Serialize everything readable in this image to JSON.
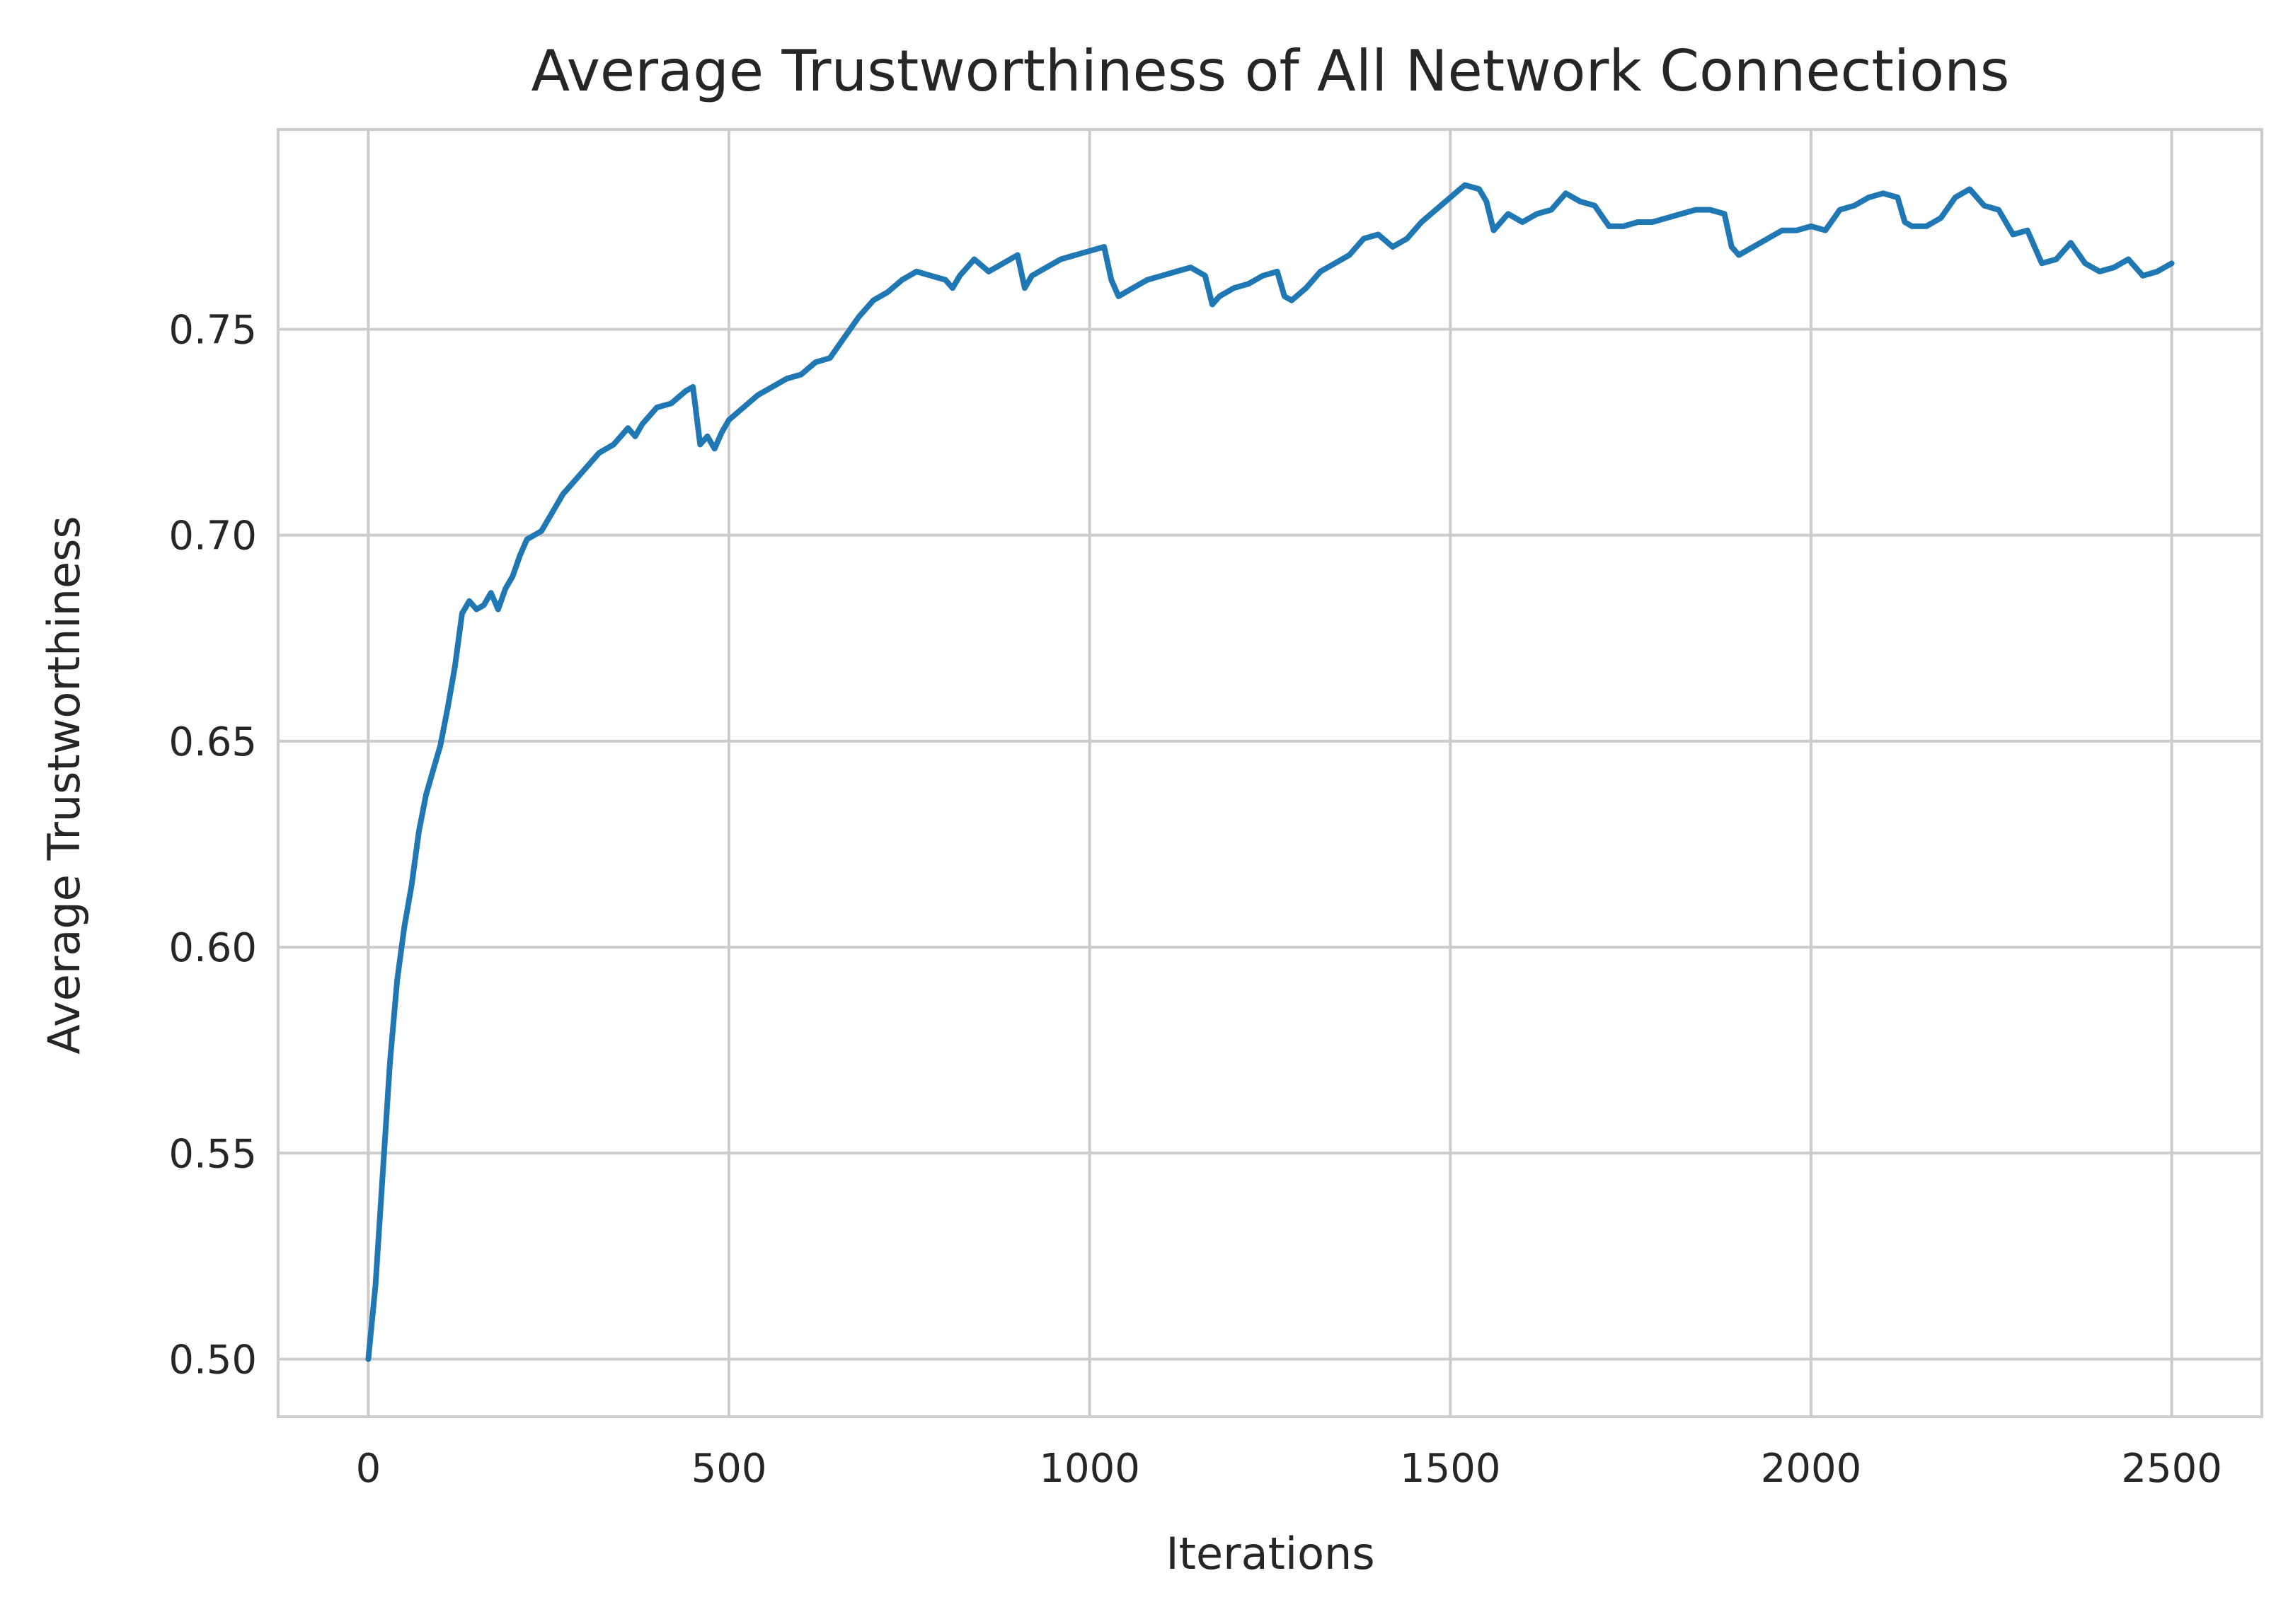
{
  "chart_data": {
    "type": "line",
    "title": "Average Trustworthiness of All Network Connections",
    "xlabel": "Iterations",
    "ylabel": "Average Trustworthiness",
    "xlim": [
      -125,
      2625
    ],
    "ylim": [
      0.486,
      0.7985
    ],
    "xticks": [
      0,
      500,
      1000,
      1500,
      2000,
      2500
    ],
    "xtick_labels": [
      "0",
      "500",
      "1000",
      "1500",
      "2000",
      "2500"
    ],
    "yticks": [
      0.5,
      0.55,
      0.6,
      0.65,
      0.7,
      0.75
    ],
    "ytick_labels": [
      "0.50",
      "0.55",
      "0.60",
      "0.65",
      "0.70",
      "0.75"
    ],
    "grid": true,
    "line_color": "#1f77b4",
    "grid_color": "#cccccc",
    "series": [
      {
        "x": [
          0,
          10,
          20,
          30,
          40,
          50,
          60,
          70,
          80,
          90,
          100,
          110,
          120,
          130,
          140,
          150,
          160,
          170,
          180,
          190,
          200,
          210,
          220,
          230,
          240,
          250,
          260,
          270,
          280,
          300,
          320,
          340,
          360,
          370,
          380,
          390,
          400,
          420,
          440,
          450,
          460,
          470,
          480,
          490,
          500,
          520,
          540,
          560,
          580,
          600,
          620,
          640,
          660,
          680,
          700,
          720,
          740,
          760,
          780,
          800,
          810,
          820,
          840,
          860,
          880,
          900,
          910,
          920,
          940,
          960,
          980,
          1000,
          1020,
          1030,
          1040,
          1060,
          1080,
          1100,
          1120,
          1140,
          1160,
          1170,
          1180,
          1200,
          1220,
          1240,
          1260,
          1270,
          1280,
          1300,
          1320,
          1340,
          1360,
          1380,
          1400,
          1420,
          1440,
          1460,
          1480,
          1500,
          1520,
          1540,
          1550,
          1560,
          1580,
          1600,
          1620,
          1640,
          1660,
          1680,
          1700,
          1720,
          1740,
          1760,
          1780,
          1800,
          1820,
          1840,
          1860,
          1880,
          1890,
          1900,
          1920,
          1940,
          1960,
          1980,
          2000,
          2020,
          2040,
          2060,
          2080,
          2100,
          2120,
          2130,
          2140,
          2160,
          2180,
          2200,
          2220,
          2240,
          2260,
          2280,
          2300,
          2320,
          2340,
          2360,
          2380,
          2400,
          2420,
          2440,
          2460,
          2480,
          2500
        ],
        "values": [
          0.5,
          0.518,
          0.545,
          0.572,
          0.592,
          0.605,
          0.615,
          0.628,
          0.637,
          0.643,
          0.649,
          0.658,
          0.668,
          0.681,
          0.684,
          0.682,
          0.683,
          0.686,
          0.682,
          0.687,
          0.69,
          0.695,
          0.699,
          0.7,
          0.701,
          0.704,
          0.707,
          0.71,
          0.712,
          0.716,
          0.72,
          0.722,
          0.726,
          0.724,
          0.727,
          0.729,
          0.731,
          0.732,
          0.735,
          0.736,
          0.722,
          0.724,
          0.721,
          0.725,
          0.728,
          0.731,
          0.734,
          0.736,
          0.738,
          0.739,
          0.742,
          0.743,
          0.748,
          0.753,
          0.757,
          0.759,
          0.762,
          0.764,
          0.763,
          0.762,
          0.76,
          0.763,
          0.767,
          0.764,
          0.766,
          0.768,
          0.76,
          0.763,
          0.765,
          0.767,
          0.768,
          0.769,
          0.77,
          0.762,
          0.758,
          0.76,
          0.762,
          0.763,
          0.764,
          0.765,
          0.763,
          0.756,
          0.758,
          0.76,
          0.761,
          0.763,
          0.764,
          0.758,
          0.757,
          0.76,
          0.764,
          0.766,
          0.768,
          0.772,
          0.773,
          0.77,
          0.772,
          0.776,
          0.779,
          0.782,
          0.785,
          0.784,
          0.781,
          0.774,
          0.778,
          0.776,
          0.778,
          0.779,
          0.783,
          0.781,
          0.78,
          0.775,
          0.775,
          0.776,
          0.776,
          0.777,
          0.778,
          0.779,
          0.779,
          0.778,
          0.77,
          0.768,
          0.77,
          0.772,
          0.774,
          0.774,
          0.775,
          0.774,
          0.779,
          0.78,
          0.782,
          0.783,
          0.782,
          0.776,
          0.775,
          0.775,
          0.777,
          0.782,
          0.784,
          0.78,
          0.779,
          0.773,
          0.774,
          0.766,
          0.767,
          0.771,
          0.766,
          0.764,
          0.765,
          0.767,
          0.763,
          0.764,
          0.766
        ]
      }
    ]
  }
}
